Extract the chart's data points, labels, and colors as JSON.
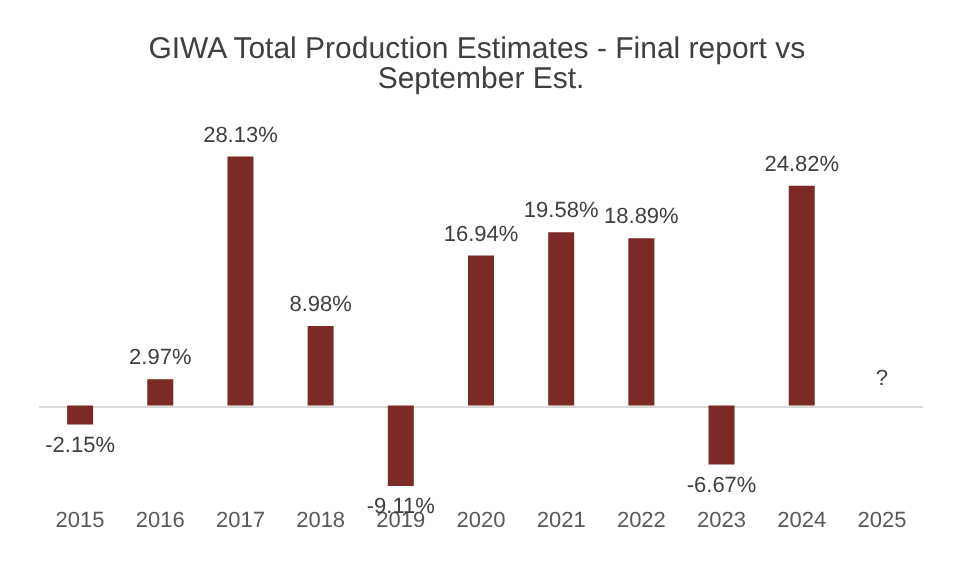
{
  "chart_data": {
    "type": "bar",
    "title": "GIWA Total Production Estimates - Final report vs September Est.",
    "categories": [
      "2015",
      "2016",
      "2017",
      "2018",
      "2019",
      "2020",
      "2021",
      "2022",
      "2023",
      "2024",
      "2025"
    ],
    "values": [
      -2.15,
      2.97,
      28.13,
      8.98,
      -9.11,
      16.94,
      19.58,
      18.89,
      -6.67,
      24.82,
      null
    ],
    "value_labels": [
      "-2.15%",
      "2.97%",
      "28.13%",
      "8.98%",
      "-9.11%",
      "16.94%",
      "19.58%",
      "18.89%",
      "-6.67%",
      "24.82%",
      "?"
    ],
    "color": "#7b2a25"
  }
}
